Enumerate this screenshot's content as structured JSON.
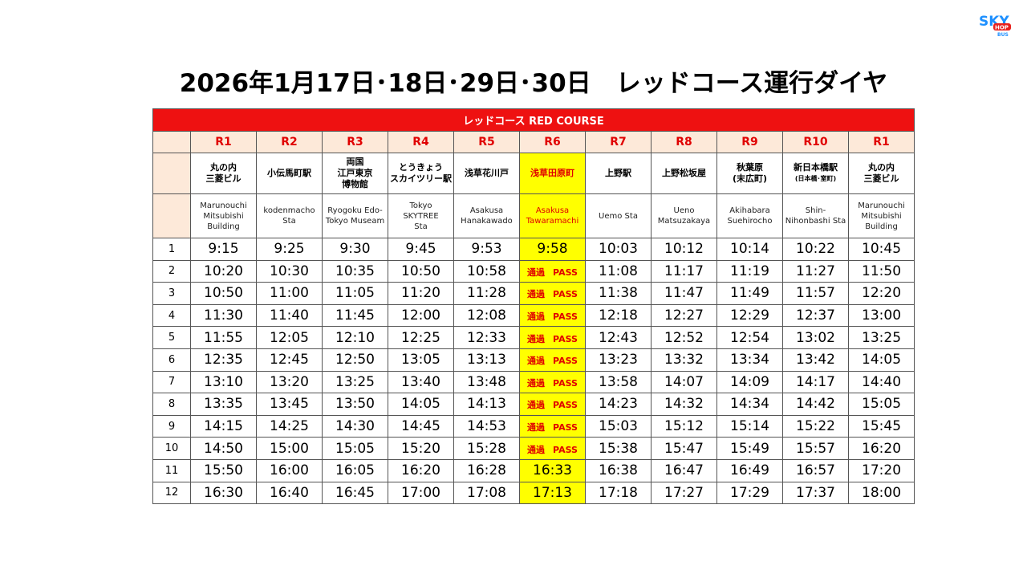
{
  "logo": {
    "text_top": "SKY",
    "text_mid": "HOP",
    "text_bot": "BUS"
  },
  "title": "2026年1月17日･18日･29日･30日　レッドコース運行ダイヤ",
  "banner": "レッドコース RED COURSE",
  "stops": [
    {
      "code": "R1",
      "jp": [
        "丸の内",
        "三菱ビル"
      ],
      "en": [
        "Marunouchi",
        "Mitsubishi",
        "Building"
      ]
    },
    {
      "code": "R2",
      "jp": [
        "小伝馬町駅"
      ],
      "en": [
        "kodenmacho",
        "Sta"
      ]
    },
    {
      "code": "R3",
      "jp": [
        "両国",
        "江戸東京",
        "博物館"
      ],
      "en": [
        "Ryogoku Edo-",
        "Tokyo Museam"
      ]
    },
    {
      "code": "R4",
      "jp": [
        "とうきょう",
        "スカイツリー駅"
      ],
      "en": [
        "Tokyo",
        "SKYTREE",
        "Sta"
      ]
    },
    {
      "code": "R5",
      "jp": [
        "浅草花川戸"
      ],
      "en": [
        "Asakusa",
        "Hanakawado"
      ]
    },
    {
      "code": "R6",
      "jp": [
        "浅草田原町"
      ],
      "en": [
        "Asakusa",
        "Tawaramachi"
      ],
      "highlight": true
    },
    {
      "code": "R7",
      "jp": [
        "上野駅"
      ],
      "en": [
        "Uemo Sta"
      ]
    },
    {
      "code": "R8",
      "jp": [
        "上野松坂屋"
      ],
      "en": [
        "Ueno",
        "Matsuzakaya"
      ]
    },
    {
      "code": "R9",
      "jp": [
        "秋葉原",
        "(末広町)"
      ],
      "en": [
        "Akihabara",
        "Suehirocho"
      ]
    },
    {
      "code": "R10",
      "jp": [
        "新日本橋駅"
      ],
      "jp_sub": "(日本橋･室町)",
      "en": [
        "Shin-",
        "Nihonbashi Sta"
      ]
    },
    {
      "code": "R1",
      "jp": [
        "丸の内",
        "三菱ビル"
      ],
      "en": [
        "Marunouchi",
        "Mitsubishi",
        "Building"
      ]
    }
  ],
  "pass": {
    "jp": "通過",
    "en": "PASS"
  },
  "trips": [
    {
      "no": "1",
      "times": [
        "9:15",
        "9:25",
        "9:30",
        "9:45",
        "9:53",
        "9:58",
        "10:03",
        "10:12",
        "10:14",
        "10:22",
        "10:45"
      ]
    },
    {
      "no": "2",
      "times": [
        "10:20",
        "10:30",
        "10:35",
        "10:50",
        "10:58",
        "PASS",
        "11:08",
        "11:17",
        "11:19",
        "11:27",
        "11:50"
      ]
    },
    {
      "no": "3",
      "times": [
        "10:50",
        "11:00",
        "11:05",
        "11:20",
        "11:28",
        "PASS",
        "11:38",
        "11:47",
        "11:49",
        "11:57",
        "12:20"
      ]
    },
    {
      "no": "4",
      "times": [
        "11:30",
        "11:40",
        "11:45",
        "12:00",
        "12:08",
        "PASS",
        "12:18",
        "12:27",
        "12:29",
        "12:37",
        "13:00"
      ]
    },
    {
      "no": "5",
      "times": [
        "11:55",
        "12:05",
        "12:10",
        "12:25",
        "12:33",
        "PASS",
        "12:43",
        "12:52",
        "12:54",
        "13:02",
        "13:25"
      ]
    },
    {
      "no": "6",
      "times": [
        "12:35",
        "12:45",
        "12:50",
        "13:05",
        "13:13",
        "PASS",
        "13:23",
        "13:32",
        "13:34",
        "13:42",
        "14:05"
      ]
    },
    {
      "no": "7",
      "times": [
        "13:10",
        "13:20",
        "13:25",
        "13:40",
        "13:48",
        "PASS",
        "13:58",
        "14:07",
        "14:09",
        "14:17",
        "14:40"
      ]
    },
    {
      "no": "8",
      "times": [
        "13:35",
        "13:45",
        "13:50",
        "14:05",
        "14:13",
        "PASS",
        "14:23",
        "14:32",
        "14:34",
        "14:42",
        "15:05"
      ]
    },
    {
      "no": "9",
      "times": [
        "14:15",
        "14:25",
        "14:30",
        "14:45",
        "14:53",
        "PASS",
        "15:03",
        "15:12",
        "15:14",
        "15:22",
        "15:45"
      ]
    },
    {
      "no": "10",
      "times": [
        "14:50",
        "15:00",
        "15:05",
        "15:20",
        "15:28",
        "PASS",
        "15:38",
        "15:47",
        "15:49",
        "15:57",
        "16:20"
      ]
    },
    {
      "no": "11",
      "times": [
        "15:50",
        "16:00",
        "16:05",
        "16:20",
        "16:28",
        "16:33",
        "16:38",
        "16:47",
        "16:49",
        "16:57",
        "17:20"
      ]
    },
    {
      "no": "12",
      "times": [
        "16:30",
        "16:40",
        "16:45",
        "17:00",
        "17:08",
        "17:13",
        "17:18",
        "17:27",
        "17:29",
        "17:37",
        "18:00"
      ]
    }
  ],
  "colors": {
    "accent": "#ee1111",
    "header_bg": "#fde9d9",
    "highlight": "#ffff00",
    "code_text": "#e00000"
  }
}
